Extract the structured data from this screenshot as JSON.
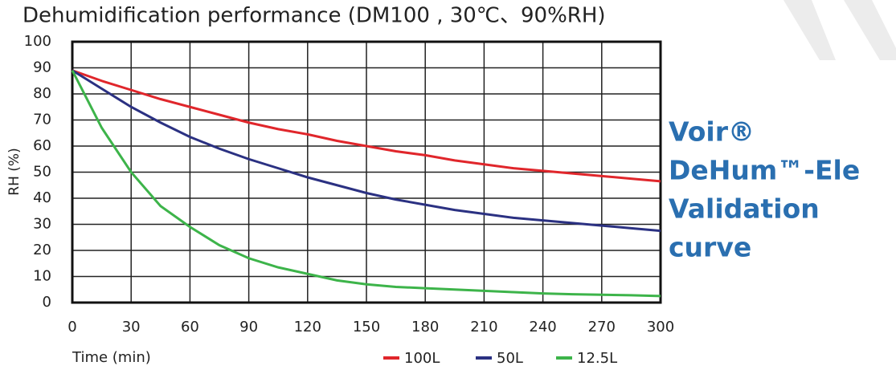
{
  "chart_data": {
    "type": "line",
    "title": "Dehumidification performance (DM100 , 30℃、90%RH)",
    "x_label": "Time (min)",
    "y_label": "RH (%)",
    "x": [
      0,
      15,
      30,
      45,
      60,
      75,
      90,
      105,
      120,
      135,
      150,
      165,
      180,
      195,
      210,
      225,
      240,
      255,
      270,
      285,
      300
    ],
    "series": [
      {
        "name": "100L",
        "color": "#e0262b",
        "values": [
          89,
          85,
          81.5,
          78,
          75,
          72,
          69,
          66.5,
          64.5,
          62,
          60,
          58,
          56.5,
          54.5,
          53,
          51.5,
          50.5,
          49.5,
          48.5,
          47.5,
          46.5
        ]
      },
      {
        "name": "50L",
        "color": "#2b3182",
        "values": [
          89,
          82,
          75,
          69,
          63.5,
          59,
          55,
          51.5,
          48,
          45,
          42,
          39.5,
          37.5,
          35.5,
          34,
          32.5,
          31.5,
          30.5,
          29.5,
          28.5,
          27.5
        ]
      },
      {
        "name": "12.5L",
        "color": "#3db44a",
        "values": [
          89,
          67,
          50,
          37,
          29,
          22,
          17,
          13.5,
          11,
          8.5,
          7,
          6,
          5.5,
          5,
          4.5,
          4,
          3.5,
          3.2,
          3,
          2.8,
          2.5
        ]
      }
    ],
    "xlim": [
      0,
      300
    ],
    "xticks": [
      0,
      30,
      60,
      90,
      120,
      150,
      180,
      210,
      240,
      270,
      300
    ],
    "ylim": [
      0,
      100
    ],
    "yticks": [
      0,
      10,
      20,
      30,
      40,
      50,
      60,
      70,
      80,
      90,
      100
    ],
    "grid": true,
    "side_text": [
      "Voir®",
      "DeHum™-Ele",
      "Validation",
      "curve"
    ],
    "side_text_color": "#2a6fb0"
  }
}
